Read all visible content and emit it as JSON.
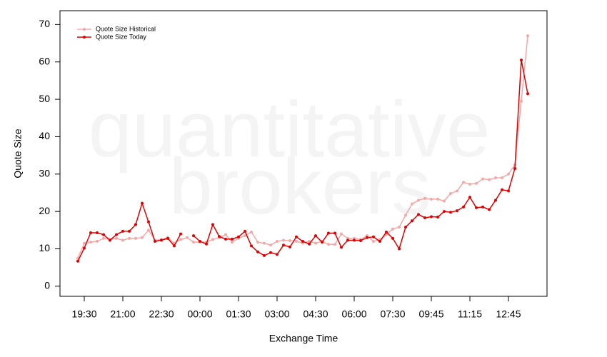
{
  "chart_data": {
    "type": "line",
    "watermark": [
      "quantitative",
      "brokers"
    ],
    "xlabel": "Exchange Time",
    "ylabel": "Quote Size",
    "categories": [
      null,
      "19:30",
      null,
      null,
      null,
      null,
      null,
      "21:00",
      null,
      null,
      null,
      null,
      null,
      "22:30",
      null,
      null,
      null,
      null,
      null,
      "00:00",
      null,
      null,
      null,
      null,
      null,
      "01:30",
      null,
      null,
      null,
      null,
      null,
      "03:00",
      null,
      null,
      null,
      null,
      null,
      "04:30",
      null,
      null,
      null,
      null,
      null,
      "06:00",
      null,
      null,
      null,
      null,
      null,
      "07:30",
      null,
      null,
      null,
      null,
      null,
      "09:45",
      null,
      null,
      null,
      null,
      null,
      "11:15",
      null,
      null,
      null,
      null,
      null,
      "12:45",
      null,
      null,
      null
    ],
    "ylim": [
      -2.7,
      73.7
    ],
    "yticks": [
      0,
      10,
      20,
      30,
      40,
      50,
      60,
      70
    ],
    "legend": "top-left",
    "series": [
      {
        "name": "Quote Size Historical",
        "color": "#f4a8a8",
        "values": [
          7.5,
          11.5,
          11.8,
          12.0,
          12.8,
          12.5,
          12.8,
          12.3,
          12.8,
          12.8,
          13.0,
          15.0,
          12.3,
          12.5,
          13.0,
          11.5,
          12.5,
          13.0,
          11.8,
          11.8,
          11.8,
          12.5,
          13.0,
          13.8,
          11.8,
          12.8,
          13.5,
          14.5,
          11.8,
          11.5,
          11.0,
          12.0,
          12.3,
          12.2,
          12.0,
          11.5,
          12.0,
          11.5,
          12.0,
          11.2,
          11.2,
          14.0,
          12.8,
          12.8,
          12.5,
          13.5,
          12.0,
          12.5,
          13.8,
          15.3,
          15.8,
          19.0,
          22.0,
          23.0,
          23.5,
          23.3,
          23.3,
          22.8,
          24.8,
          25.5,
          27.8,
          27.3,
          27.5,
          28.7,
          28.5,
          29.0,
          29.0,
          30.0,
          32.5,
          49.5,
          67.0
        ]
      },
      {
        "name": "Quote Size Today",
        "color": "#e00000",
        "values": [
          6.7,
          10.2,
          14.3,
          14.3,
          13.8,
          12.3,
          13.8,
          14.7,
          14.7,
          16.5,
          22.2,
          17.2,
          12.0,
          12.3,
          12.8,
          10.8,
          14.0,
          null,
          13.5,
          12.0,
          11.3,
          16.5,
          13.3,
          12.6,
          12.6,
          13.2,
          14.7,
          10.8,
          9.2,
          8.2,
          9.0,
          8.5,
          11.0,
          10.5,
          13.2,
          12.0,
          11.3,
          13.5,
          11.8,
          14.2,
          14.2,
          10.4,
          12.3,
          12.3,
          12.2,
          13.0,
          13.2,
          12.0,
          14.5,
          12.8,
          10.0,
          15.8,
          17.5,
          19.2,
          18.3,
          18.6,
          18.5,
          20.0,
          19.8,
          20.2,
          21.2,
          23.8,
          21.0,
          21.2,
          20.5,
          23.0,
          25.8,
          25.5,
          31.5,
          60.5,
          51.5
        ]
      }
    ]
  }
}
